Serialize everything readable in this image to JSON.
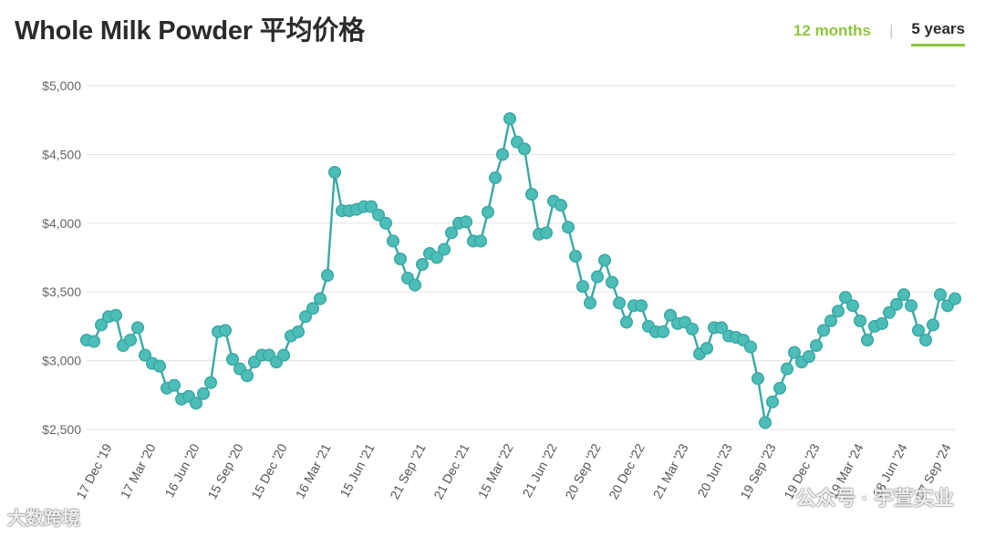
{
  "header": {
    "title": "Whole Milk Powder 平均价格",
    "tab_12m": "12 months",
    "tab_sep": "|",
    "tab_5y": "5 years"
  },
  "watermarks": {
    "left": "大数跨境",
    "right": "公众号 · 宇萱实业"
  },
  "chart_data": {
    "type": "line",
    "ylim": [
      2500,
      5000
    ],
    "yticks": [
      "$5,000",
      "$4,500",
      "$4,000",
      "$3,500",
      "$3,000",
      "$2,500"
    ],
    "ytick_values": [
      5000,
      4500,
      4000,
      3500,
      3000,
      2500
    ],
    "x_tick_labels": [
      {
        "label": "17 Dec '19",
        "index": 3
      },
      {
        "label": "17 Mar '20",
        "index": 9
      },
      {
        "label": "16 Jun '20",
        "index": 15
      },
      {
        "label": "15 Sep '20",
        "index": 21
      },
      {
        "label": "15 Dec '20",
        "index": 27
      },
      {
        "label": "16 Mar '21",
        "index": 33
      },
      {
        "label": "15 Jun '21",
        "index": 39
      },
      {
        "label": "21 Sep '21",
        "index": 46
      },
      {
        "label": "21 Dec '21",
        "index": 52
      },
      {
        "label": "15 Mar '22",
        "index": 58
      },
      {
        "label": "21 Jun '22",
        "index": 64
      },
      {
        "label": "20 Sep '22",
        "index": 70
      },
      {
        "label": "20 Dec '22",
        "index": 76
      },
      {
        "label": "21 Mar '23",
        "index": 82
      },
      {
        "label": "20 Jun '23",
        "index": 88
      },
      {
        "label": "19 Sep '23",
        "index": 94
      },
      {
        "label": "19 Dec '23",
        "index": 100
      },
      {
        "label": "19 Mar '24",
        "index": 106
      },
      {
        "label": "18 Jun '24",
        "index": 112
      },
      {
        "label": "17 Sep '24",
        "index": 118
      }
    ],
    "series": [
      {
        "color": "#3aa8a4",
        "marker_fill": "#4dbdb8",
        "values": [
          3150,
          3140,
          3260,
          3320,
          3330,
          3110,
          3150,
          3240,
          3040,
          2980,
          2960,
          2800,
          2820,
          2720,
          2740,
          2690,
          2760,
          2840,
          3210,
          3220,
          3010,
          2940,
          2890,
          2990,
          3040,
          3040,
          2990,
          3040,
          3180,
          3210,
          3320,
          3380,
          3450,
          3620,
          4370,
          4090,
          4090,
          4100,
          4120,
          4120,
          4060,
          4000,
          3870,
          3740,
          3600,
          3550,
          3700,
          3780,
          3750,
          3810,
          3930,
          4000,
          4010,
          3870,
          3870,
          4080,
          4330,
          4500,
          4760,
          4590,
          4540,
          4210,
          3920,
          3930,
          4160,
          4130,
          3970,
          3760,
          3540,
          3420,
          3610,
          3730,
          3570,
          3420,
          3280,
          3400,
          3400,
          3250,
          3210,
          3210,
          3330,
          3270,
          3280,
          3230,
          3050,
          3090,
          3240,
          3240,
          3180,
          3170,
          3150,
          3100,
          2870,
          2550,
          2700,
          2800,
          2940,
          3060,
          2990,
          3030,
          3110,
          3220,
          3290,
          3360,
          3460,
          3400,
          3290,
          3150,
          3250,
          3270,
          3350,
          3410,
          3480,
          3400,
          3220,
          3150,
          3260,
          3480,
          3400,
          3450
        ]
      }
    ]
  }
}
